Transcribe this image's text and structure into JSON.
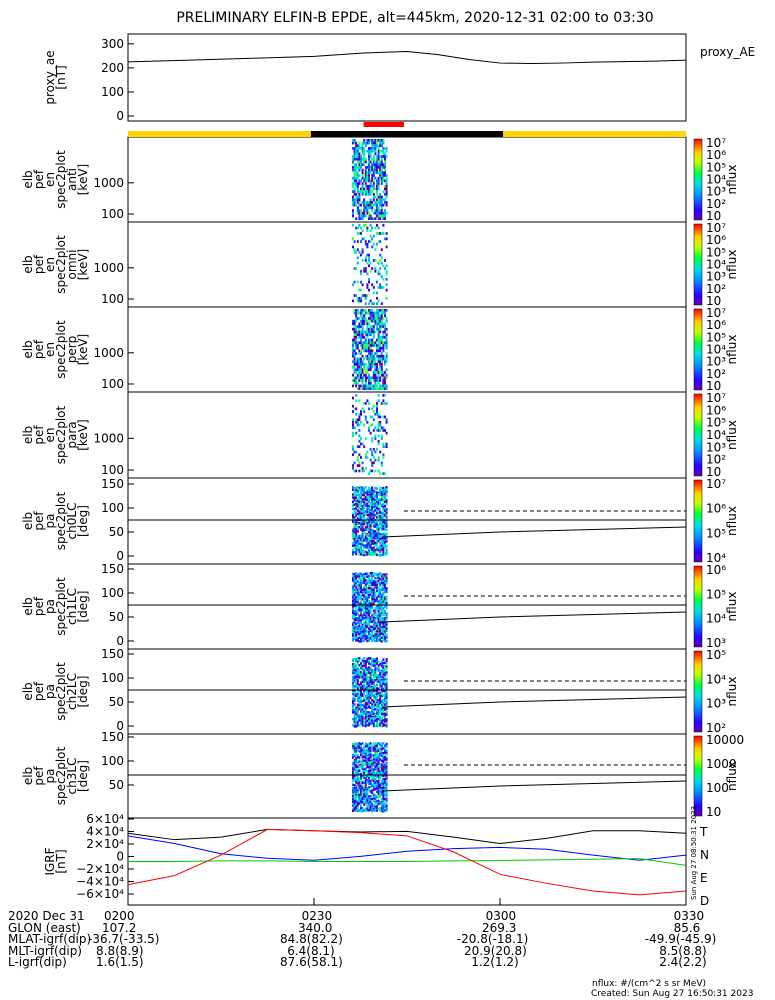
{
  "title": "PRELIMINARY ELFIN-B EPDE, alt=445km, 2020-12-31 02:00 to 03:30",
  "time_axis": {
    "start_label": "0200",
    "tick_labels": [
      "0200",
      "0230",
      "0300",
      "0330"
    ],
    "tick_minutes": [
      0,
      30,
      60,
      90
    ]
  },
  "status_bars": {
    "segments": [
      {
        "from_min": 0,
        "to_min": 29.5,
        "color": "#ffd400"
      },
      {
        "from_min": 29.5,
        "to_min": 60.5,
        "color": "#000000"
      },
      {
        "from_min": 60.5,
        "to_min": 90,
        "color": "#ffd400"
      }
    ],
    "science": {
      "from_min": 38,
      "to_min": 44.5,
      "color": "#ff0000"
    }
  },
  "panels": [
    {
      "key": "ae",
      "ylabel_lines": [
        "proxy_ae",
        "[nT]"
      ],
      "right_label": "proxy_AE",
      "yticks": [
        "0",
        "100",
        "200",
        "300"
      ]
    },
    {
      "key": "en_anti",
      "ylabel_lines": [
        "elb",
        "pef",
        "en",
        "spec2plot",
        "anti",
        "[keV]"
      ],
      "yticks": [
        "100",
        "1000"
      ],
      "cb_ticks": [
        "10",
        "10²",
        "10³",
        "10⁴",
        "10⁵",
        "10⁶",
        "10⁷"
      ],
      "cb_title": "nflux"
    },
    {
      "key": "en_omni",
      "ylabel_lines": [
        "elb",
        "pef",
        "en",
        "spec2plot",
        "omni",
        "[keV]"
      ],
      "yticks": [
        "100",
        "1000"
      ],
      "cb_ticks": [
        "10",
        "10²",
        "10³",
        "10⁴",
        "10⁵",
        "10⁶",
        "10⁷"
      ],
      "cb_title": "nflux"
    },
    {
      "key": "en_perp",
      "ylabel_lines": [
        "elb",
        "pef",
        "en",
        "spec2plot",
        "perp",
        "[keV]"
      ],
      "yticks": [
        "100",
        "1000"
      ],
      "cb_ticks": [
        "10",
        "10²",
        "10³",
        "10⁴",
        "10⁵",
        "10⁶",
        "10⁷"
      ],
      "cb_title": "nflux"
    },
    {
      "key": "en_para",
      "ylabel_lines": [
        "elb",
        "pef",
        "en",
        "spec2plot",
        "para",
        "[keV]"
      ],
      "yticks": [
        "100",
        "1000"
      ],
      "cb_ticks": [
        "10",
        "10²",
        "10³",
        "10⁴",
        "10⁵",
        "10⁶",
        "10⁷"
      ],
      "cb_title": "nflux"
    },
    {
      "key": "pa_ch0",
      "ylabel_lines": [
        "elb",
        "pef",
        "pa",
        "spec2plot",
        "ch0LC",
        "[deg]"
      ],
      "yticks": [
        "0",
        "50",
        "100",
        "150"
      ],
      "cb_ticks": [
        "10⁴",
        "10⁵",
        "10⁶",
        "10⁷"
      ],
      "cb_title": "nflux"
    },
    {
      "key": "pa_ch1",
      "ylabel_lines": [
        "elb",
        "pef",
        "pa",
        "spec2plot",
        "ch1LC",
        "[deg]"
      ],
      "yticks": [
        "0",
        "50",
        "100",
        "150"
      ],
      "cb_ticks": [
        "10³",
        "10⁴",
        "10⁵",
        "10⁶"
      ],
      "cb_title": "nflux"
    },
    {
      "key": "pa_ch2",
      "ylabel_lines": [
        "elb",
        "pef",
        "pa",
        "spec2plot",
        "ch2LC",
        "[deg]"
      ],
      "yticks": [
        "0",
        "50",
        "100",
        "150"
      ],
      "cb_ticks": [
        "10²",
        "10³",
        "10⁴",
        "10⁵"
      ],
      "cb_title": "nflux"
    },
    {
      "key": "pa_ch3",
      "ylabel_lines": [
        "elb",
        "pef",
        "pa",
        "spec2plot",
        "ch3LC",
        "[deg]"
      ],
      "yticks": [
        "50",
        "100",
        "150"
      ],
      "cb_ticks": [
        "10",
        "100",
        "1000",
        "10000"
      ],
      "cb_title": "nflux"
    },
    {
      "key": "igrf",
      "ylabel_lines": [
        "IGRF",
        "[nT]"
      ],
      "yticks": [
        "−6×10⁴",
        "−4×10⁴",
        "−2×10⁴",
        "0",
        "2×10⁴",
        "4×10⁴",
        "6×10⁴"
      ],
      "legend": [
        {
          "label": "T",
          "color": "#000000"
        },
        {
          "label": "N",
          "color": "#0000ff"
        },
        {
          "label": "E",
          "color": "#00cc00"
        },
        {
          "label": "D",
          "color": "#ff0000"
        }
      ]
    }
  ],
  "chart_data": [
    {
      "type": "line",
      "title": "PRELIMINARY ELFIN-B EPDE, alt=445km, 2020-12-31 02:00 to 03:30",
      "xlabel": "",
      "ylabel": "proxy_ae [nT]",
      "ylim": [
        0,
        320
      ],
      "x": [
        0,
        10,
        20,
        30,
        38,
        45,
        50,
        55,
        60,
        65,
        70,
        75,
        80,
        85,
        90
      ],
      "series": [
        {
          "name": "proxy_AE",
          "values": [
            225,
            232,
            240,
            248,
            262,
            268,
            255,
            235,
            220,
            218,
            220,
            224,
            226,
            228,
            232
          ]
        }
      ]
    },
    {
      "type": "line",
      "xlabel": "",
      "ylabel": "IGRF [nT]",
      "ylim": [
        -60000,
        60000
      ],
      "x": [
        0,
        7.5,
        15,
        22.5,
        30,
        37.5,
        45,
        52.5,
        60,
        67.5,
        75,
        82.5,
        90
      ],
      "series": [
        {
          "name": "T",
          "values": [
            44000,
            34000,
            38000,
            50000,
            48000,
            46000,
            47000,
            38000,
            28000,
            36000,
            48000,
            48000,
            44000
          ]
        },
        {
          "name": "N",
          "values": [
            40000,
            28000,
            12000,
            5000,
            2000,
            8000,
            16000,
            20000,
            22000,
            19000,
            10000,
            2000,
            10000
          ]
        },
        {
          "name": "E",
          "values": [
            0,
            0,
            1000,
            1000,
            0,
            0,
            0,
            1000,
            1500,
            2500,
            3500,
            4500,
            -6000
          ]
        },
        {
          "name": "D",
          "values": [
            -36000,
            -22000,
            10000,
            50000,
            48000,
            45000,
            40000,
            15000,
            -20000,
            -34000,
            -46000,
            -52000,
            -46000
          ]
        }
      ]
    },
    {
      "type": "scatter",
      "xlabel": "",
      "ylabel": "pa [deg]",
      "ylim": [
        0,
        180
      ],
      "x": [
        0,
        30,
        45,
        60,
        90
      ],
      "series": [
        {
          "name": "solid",
          "values": [
            90,
            90,
            90,
            90,
            90
          ]
        },
        {
          "name": "dashed",
          "values": [
            null,
            null,
            112,
            112,
            112
          ]
        }
      ]
    }
  ],
  "footer": {
    "rows": [
      {
        "label": "2020 Dec 31",
        "vals": [
          "0200",
          "0230",
          "0300",
          "0330"
        ]
      },
      {
        "label": "GLON (east)",
        "vals": [
          "107.2",
          "340.0",
          "269.3",
          "85.6"
        ]
      },
      {
        "label": "MLAT-igrf(dip)",
        "vals": [
          "-36.7(-33.5)",
          "84.8(82.2)",
          "-20.8(-18.1)",
          "-49.9(-45.9)"
        ]
      },
      {
        "label": "MLT-igrf(dip)",
        "vals": [
          "8.8(8.9)",
          "6.4(8.1)",
          "20.9(20.8)",
          "8.5(8.8)"
        ]
      },
      {
        "label": "L-igrf(dip)",
        "vals": [
          "1.6(1.5)",
          "87.6(58.1)",
          "1.2(1.2)",
          "2.4(2.2)"
        ]
      }
    ],
    "units": "nflux: #/(cm^2 s sr MeV)",
    "created": "Created: Sun Aug 27 16:50:31 2023",
    "stamp": "Sun Aug 27 08:50:31 2023"
  }
}
